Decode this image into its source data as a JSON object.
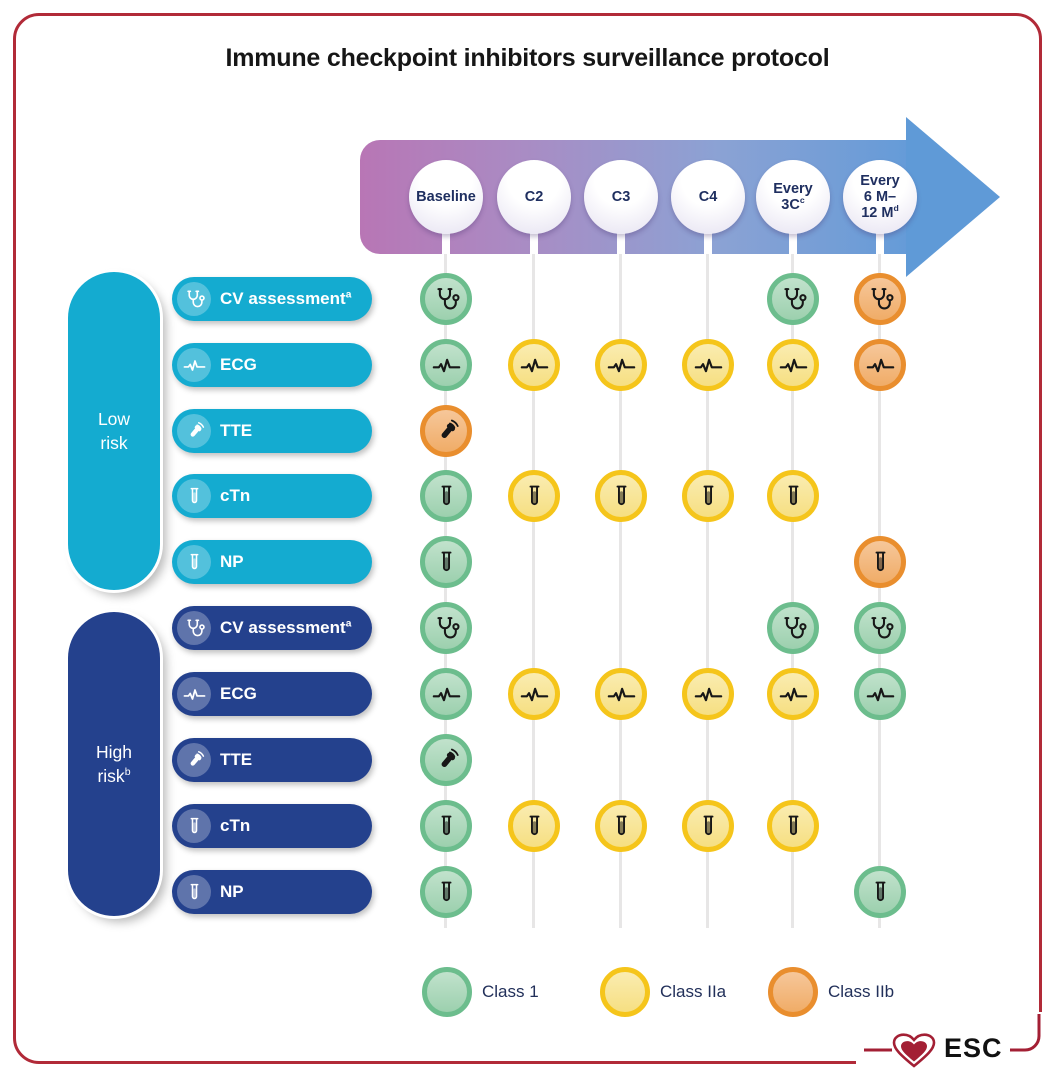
{
  "title": "Immune checkpoint inhibitors surveillance protocol",
  "timeline": {
    "columns": [
      {
        "lines": [
          "Baseline"
        ],
        "sup": ""
      },
      {
        "lines": [
          "C2"
        ],
        "sup": ""
      },
      {
        "lines": [
          "C3"
        ],
        "sup": ""
      },
      {
        "lines": [
          "C4"
        ],
        "sup": ""
      },
      {
        "lines": [
          "Every",
          "3C"
        ],
        "sup": "c"
      },
      {
        "lines": [
          "Every",
          "6 M–",
          "12 M"
        ],
        "sup": "d"
      }
    ]
  },
  "groups": [
    {
      "id": "low",
      "label_lines": [
        "Low",
        "risk"
      ],
      "sup": "",
      "color": "#14abd0",
      "rows": [
        {
          "label": "CV assessment",
          "sup": "a",
          "icon": "stethoscope-icon"
        },
        {
          "label": "ECG",
          "sup": "",
          "icon": "ecg-icon"
        },
        {
          "label": "TTE",
          "sup": "",
          "icon": "echo-probe-icon"
        },
        {
          "label": "cTn",
          "sup": "",
          "icon": "test-tube-icon"
        },
        {
          "label": "NP",
          "sup": "",
          "icon": "test-tube-icon"
        }
      ],
      "matrix": [
        [
          "1",
          null,
          null,
          null,
          "1",
          "IIb"
        ],
        [
          "1",
          "IIa",
          "IIa",
          "IIa",
          "IIa",
          "IIb"
        ],
        [
          "IIb",
          null,
          null,
          null,
          null,
          null
        ],
        [
          "1",
          "IIa",
          "IIa",
          "IIa",
          "IIa",
          null
        ],
        [
          "1",
          null,
          null,
          null,
          null,
          "IIb"
        ]
      ]
    },
    {
      "id": "high",
      "label_lines": [
        "High",
        "risk"
      ],
      "sup": "b",
      "color": "#24418d",
      "rows": [
        {
          "label": "CV assessment",
          "sup": "a",
          "icon": "stethoscope-icon"
        },
        {
          "label": "ECG",
          "sup": "",
          "icon": "ecg-icon"
        },
        {
          "label": "TTE",
          "sup": "",
          "icon": "echo-probe-icon"
        },
        {
          "label": "cTn",
          "sup": "",
          "icon": "test-tube-icon"
        },
        {
          "label": "NP",
          "sup": "",
          "icon": "test-tube-icon"
        }
      ],
      "matrix": [
        [
          "1",
          null,
          null,
          null,
          "1",
          "1"
        ],
        [
          "1",
          "IIa",
          "IIa",
          "IIa",
          "IIa",
          "1"
        ],
        [
          "1",
          null,
          null,
          null,
          null,
          null
        ],
        [
          "1",
          "IIa",
          "IIa",
          "IIa",
          "IIa",
          null
        ],
        [
          "1",
          null,
          null,
          null,
          null,
          "1"
        ]
      ]
    }
  ],
  "classes": {
    "1": {
      "label": "Class 1",
      "ring": "#6cbd8d",
      "fill_light": "#c1e2cc",
      "fill": "#9cd0ae"
    },
    "IIa": {
      "label": "Class IIa",
      "ring": "#f5c51b",
      "fill_light": "#faecb0",
      "fill": "#f6df82"
    },
    "IIb": {
      "label": "Class IIb",
      "ring": "#e98e2e",
      "fill_light": "#f6c79a",
      "fill": "#f0ac67"
    }
  },
  "legend_order": [
    "1",
    "IIa",
    "IIb"
  ],
  "logo": {
    "text": "ESC"
  },
  "colors": {
    "frame_border": "#b12a38",
    "arrow_start": "#b876b5",
    "arrow_end": "#5f9ad7",
    "header_text": "#1f2f60",
    "legend_text": "#22305a",
    "esc_red": "#a31f34"
  }
}
